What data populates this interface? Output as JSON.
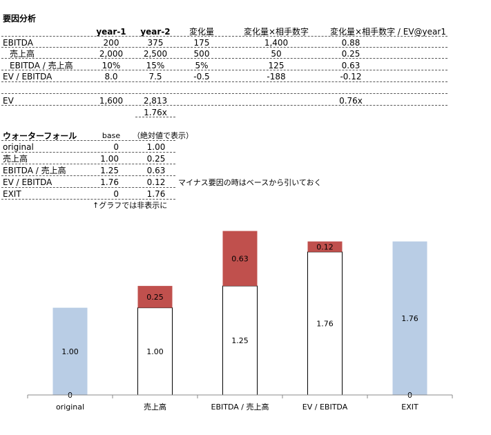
{
  "factor": {
    "title": "要因分析",
    "headers": [
      "year-1",
      "year-2",
      "変化量",
      "変化量×相手数字",
      "変化量×相手数字 / EV@year1"
    ],
    "rows": [
      {
        "label": "EBITDA",
        "indent": false,
        "cells": [
          "200",
          "375",
          "175",
          "1,400",
          "0.88"
        ]
      },
      {
        "label": "売上高",
        "indent": true,
        "cells": [
          "2,000",
          "2,500",
          "500",
          "50",
          "0.25"
        ]
      },
      {
        "label": "EBITDA / 売上高",
        "indent": true,
        "cells": [
          "10%",
          "15%",
          "5%",
          "125",
          "0.63"
        ]
      },
      {
        "label": "EV / EBITDA",
        "indent": false,
        "cells": [
          "8.0",
          "7.5",
          "-0.5",
          "-188",
          "-0.12"
        ]
      }
    ],
    "ev_row": {
      "label": "EV",
      "cells": [
        "1,600",
        "2,813",
        "",
        "",
        "0.76x"
      ]
    },
    "ratio": "1.76x"
  },
  "waterfall": {
    "title": "ウォーターフォール",
    "base_header": "base",
    "abs_header": "（絶対値で表示）",
    "rows": [
      {
        "label": "original",
        "base": "0",
        "abs": "1.00"
      },
      {
        "label": "売上高",
        "base": "1.00",
        "abs": "0.25"
      },
      {
        "label": "EBITDA / 売上高",
        "base": "1.25",
        "abs": "0.63"
      },
      {
        "label": "EV / EBITDA",
        "base": "1.76",
        "abs": "0.12"
      },
      {
        "label": "EXIT",
        "base": "0",
        "abs": "1.76"
      }
    ],
    "note_minus": "マイナス要因の時はベースから引いておく",
    "note_hidden": "↑グラフでは非表示に"
  },
  "chart_data": {
    "type": "bar",
    "stacked": true,
    "categories": [
      "original",
      "売上高",
      "EBITDA / 売上高",
      "EV / EBITDA",
      "EXIT"
    ],
    "series": [
      {
        "role": "base",
        "values": [
          0,
          1.0,
          1.25,
          1.76,
          0
        ],
        "labels": [
          "0",
          "1.00",
          "1.25",
          "1.76",
          "0"
        ]
      },
      {
        "role": "delta",
        "values": [
          1.0,
          0.25,
          0.63,
          0.12,
          1.76
        ],
        "labels": [
          "1.00",
          "0.25",
          "0.63",
          "0.12",
          "1.76"
        ]
      }
    ],
    "delta_sign": [
      1,
      1,
      1,
      -1,
      1
    ],
    "ylim": [
      0,
      1.9
    ],
    "grid": false,
    "legend": "none",
    "colors": {
      "endpoint": "#b9cde5",
      "increase": "#c0504d",
      "base_fill": "#ffffff",
      "base_stroke": "#000000",
      "axis": "#888888"
    }
  }
}
